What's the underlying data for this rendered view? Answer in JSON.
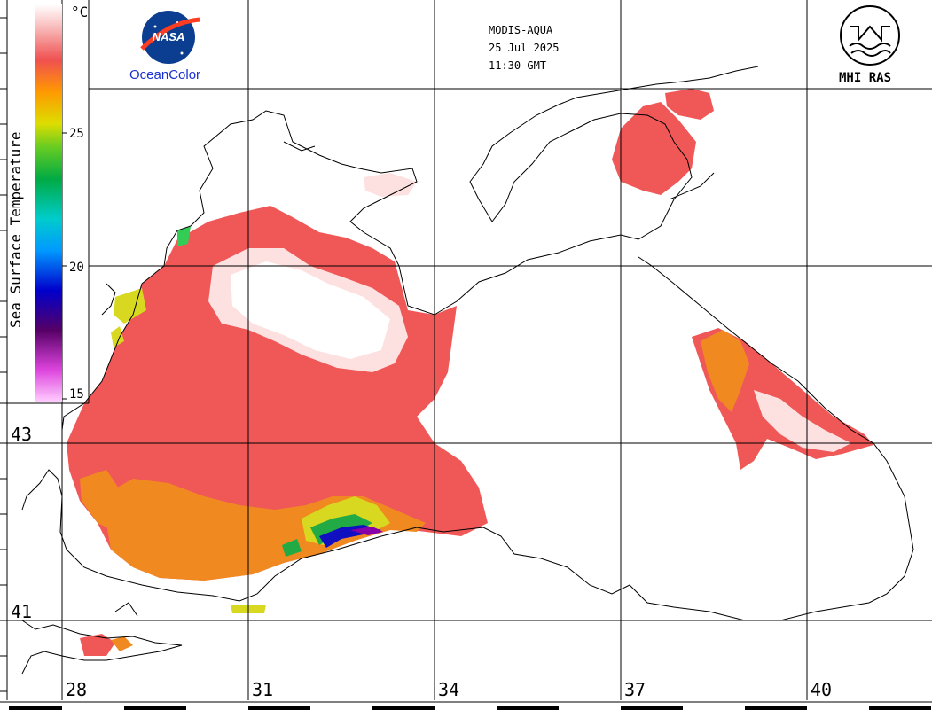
{
  "header": {
    "sensor": "MODIS-AQUA",
    "date": "25 Jul 2025",
    "time": "11:30 GMT"
  },
  "logos": {
    "nasa_word": "NASA",
    "oceancolor": "OceanColor",
    "mhi": "MHI RAS"
  },
  "colorbar": {
    "title": "Sea Surface Temperature",
    "unit": "°C",
    "ticks": [
      "25",
      "20",
      "15"
    ],
    "range": [
      15,
      30
    ],
    "colors": [
      "#ff99ff",
      "#cc33cc",
      "#660066",
      "#0000cc",
      "#0099ff",
      "#00cccc",
      "#00aa44",
      "#33cc33",
      "#cccc00",
      "#ffcc00",
      "#ff8800",
      "#f05050",
      "#f8c8c8",
      "#ffffff"
    ]
  },
  "grid": {
    "lat_labels": [
      "43",
      "41"
    ],
    "lon_labels": [
      "28",
      "31",
      "34",
      "37",
      "40"
    ]
  },
  "colors": {
    "warm": "#f05858",
    "hot": "#f8d8d8",
    "orange": "#f08a20",
    "cool": "#1010c0"
  }
}
